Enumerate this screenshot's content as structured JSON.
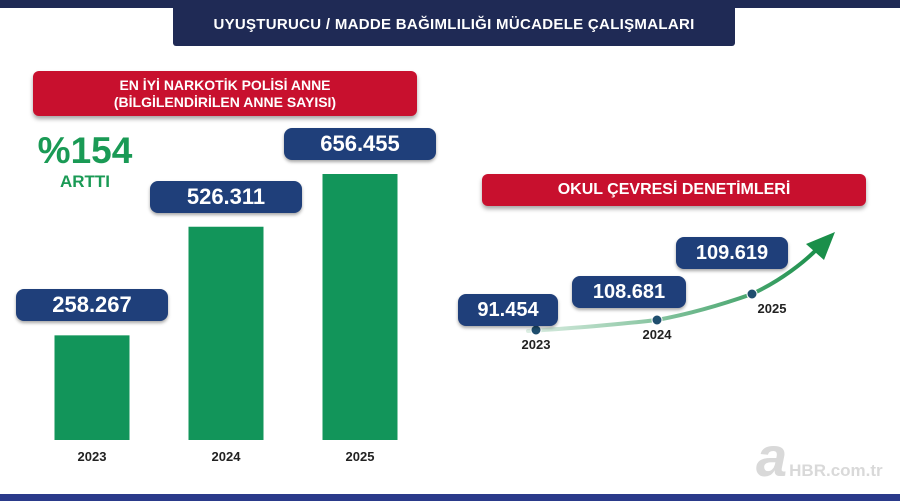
{
  "header": {
    "title": "UYUŞTURUCU / MADDE BAĞIMLILIĞI MÜCADELE ÇALIŞMALARI"
  },
  "left_panel": {
    "banner_line1": "EN İYİ NARKOTİK POLİSİ ANNE",
    "banner_line2": "(BİLGİLENDİRİLEN ANNE SAYISI)",
    "increase_value": "%154",
    "increase_label": "ARTTI"
  },
  "right_panel": {
    "banner": "OKUL ÇEVRESİ DENETİMLERİ"
  },
  "colors": {
    "navy": "#1f2a55",
    "value_box": "#1f3f7a",
    "banner_red": "#c8102e",
    "bar_green": "#12955a",
    "arrow_green": "#1a8f4a"
  },
  "chart_data": [
    {
      "type": "bar",
      "categories": [
        "2023",
        "2024",
        "2025"
      ],
      "values": [
        258267,
        526311,
        656455
      ],
      "value_labels": [
        "258.267",
        "526.311",
        "656.455"
      ],
      "title": "EN İYİ NARKOTİK POLİSİ ANNE (BİLGİLENDİRİLEN ANNE SAYISI)",
      "annotation": "%154 ARTTI",
      "grid": false
    },
    {
      "type": "line",
      "categories": [
        "2023",
        "2024",
        "2025"
      ],
      "values": [
        91454,
        108681,
        109619
      ],
      "value_labels": [
        "91.454",
        "108.681",
        "109.619"
      ],
      "title": "OKUL ÇEVRESİ DENETİMLERİ",
      "grid": false
    }
  ],
  "watermark": {
    "logo_letter": "a",
    "text": "HBR.com.tr"
  }
}
